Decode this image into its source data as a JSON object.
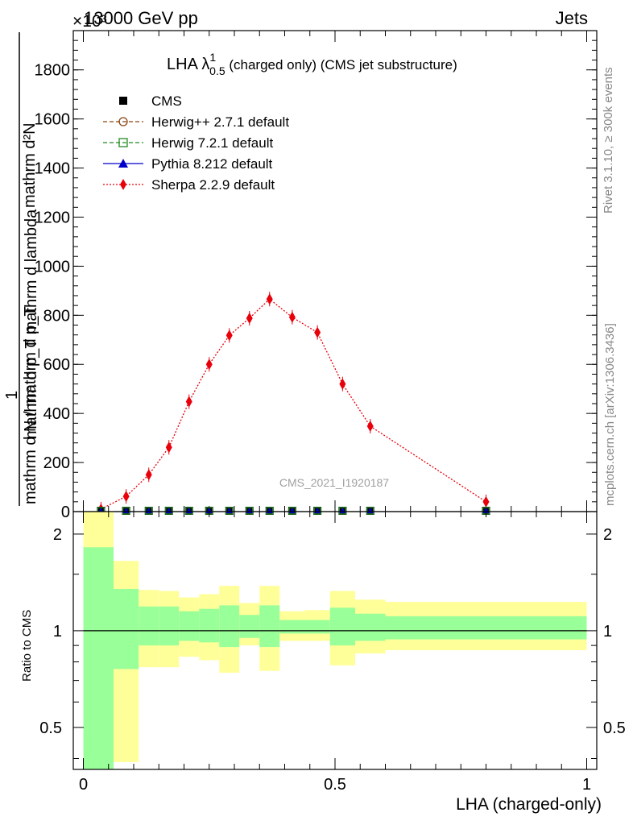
{
  "header": {
    "left": "13000 GeV pp",
    "right": "Jets",
    "exponent": "×10³"
  },
  "side": {
    "rivet": "Rivet 3.1.10, ≥ 300k events",
    "mcplots": "mcplots.cern.ch [arXiv:1306.3436]"
  },
  "watermark": "CMS_2021_I1920187",
  "chart_data": [
    {
      "type": "line",
      "title": "LHA λ¹₀.₅ (charged only) (CMS jet substructure)",
      "title_main": "LHA λ",
      "title_sup": "1",
      "title_sub": "0.5",
      "title_rest": " (charged only) (CMS jet substructure)",
      "ylabel_lines": [
        "1",
        "mathrm d N / mathrm d p_T",
        "mathrm d²N",
        "mathrm d p_T mathrm d lambda"
      ],
      "ylabel_num": "mathrm d²N",
      "ylabel_num_2": "mathrm d p_T mathrm d lambda",
      "ylabel_den_1": "1",
      "ylabel_den_2": "mathrm d N / mathrm d p_T",
      "ylim": [
        0,
        1960
      ],
      "xlim": [
        -0.02,
        1.02
      ],
      "yticks": [
        0,
        200,
        400,
        600,
        800,
        1000,
        1200,
        1400,
        1600,
        1800
      ],
      "legend": [
        {
          "label": "CMS",
          "color": "#000000",
          "marker": "square-filled",
          "line": "none"
        },
        {
          "label": "Herwig++ 2.7.1 default",
          "color": "#8B4513",
          "marker": "circle-open",
          "line": "dashed"
        },
        {
          "label": "Herwig 7.2.1 default",
          "color": "#228B22",
          "marker": "square-open",
          "line": "dashed"
        },
        {
          "label": "Pythia 8.212 default",
          "color": "#0000CC",
          "marker": "triangle-filled",
          "line": "solid"
        },
        {
          "label": "Sherpa 2.2.9 default",
          "color": "#E8000B",
          "marker": "diamond-filled",
          "line": "dotted"
        }
      ],
      "series": [
        {
          "name": "CMS",
          "x": [
            0.035,
            0.085,
            0.13,
            0.17,
            0.21,
            0.25,
            0.29,
            0.33,
            0.37,
            0.415,
            0.465,
            0.515,
            0.57,
            0.8
          ],
          "y": [
            0,
            0,
            0,
            0,
            0,
            0,
            0,
            0,
            0,
            0,
            0,
            0,
            0,
            0
          ]
        },
        {
          "name": "Sherpa 2.2.9 default",
          "x": [
            0.035,
            0.085,
            0.13,
            0.17,
            0.21,
            0.25,
            0.29,
            0.33,
            0.37,
            0.415,
            0.465,
            0.515,
            0.57,
            0.8
          ],
          "y": [
            10,
            62,
            150,
            262,
            448,
            600,
            718,
            788,
            866,
            792,
            730,
            520,
            348,
            40
          ]
        }
      ]
    },
    {
      "type": "area",
      "ylabel": "Ratio to CMS",
      "xlabel": "LHA (charged-only)",
      "ylim": [
        0.37,
        2.35
      ],
      "xlim": [
        -0.02,
        1.02
      ],
      "xticks": [
        0,
        0.5,
        1
      ],
      "xtick_labels": [
        "0",
        "0.5",
        "1"
      ],
      "yticks": [
        0.5,
        1,
        2
      ],
      "ytick_labels": [
        "0.5",
        "1",
        "2"
      ],
      "bins": [
        0.0,
        0.06,
        0.11,
        0.15,
        0.19,
        0.23,
        0.27,
        0.31,
        0.35,
        0.39,
        0.44,
        0.49,
        0.54,
        0.6,
        1.0
      ],
      "green_band": [
        [
          0.3,
          1.82
        ],
        [
          0.76,
          1.35
        ],
        [
          0.9,
          1.19
        ],
        [
          0.9,
          1.19
        ],
        [
          0.93,
          1.15
        ],
        [
          0.92,
          1.17
        ],
        [
          0.89,
          1.2
        ],
        [
          0.95,
          1.12
        ],
        [
          0.89,
          1.2
        ],
        [
          0.98,
          1.08
        ],
        [
          0.98,
          1.08
        ],
        [
          0.9,
          1.18
        ],
        [
          0.93,
          1.13
        ],
        [
          0.94,
          1.11
        ]
      ],
      "yellow_band": [
        [
          0.3,
          2.35
        ],
        [
          0.39,
          1.65
        ],
        [
          0.77,
          1.34
        ],
        [
          0.77,
          1.33
        ],
        [
          0.83,
          1.27
        ],
        [
          0.81,
          1.3
        ],
        [
          0.74,
          1.38
        ],
        [
          0.9,
          1.22
        ],
        [
          0.75,
          1.38
        ],
        [
          0.93,
          1.15
        ],
        [
          0.93,
          1.16
        ],
        [
          0.78,
          1.33
        ],
        [
          0.85,
          1.25
        ],
        [
          0.87,
          1.23
        ]
      ],
      "band_colors": {
        "green": "#99FF99",
        "yellow": "#FFFF99"
      }
    }
  ]
}
